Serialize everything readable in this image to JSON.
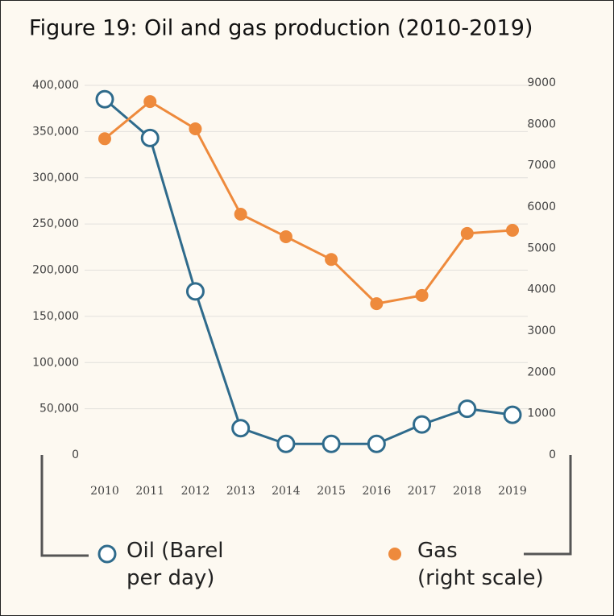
{
  "chart_data": {
    "type": "line",
    "title": "Figure 19: Oil and gas production (2010-2019)",
    "categories": [
      "2010",
      "2011",
      "2012",
      "2013",
      "2014",
      "2015",
      "2016",
      "2017",
      "2018",
      "2019"
    ],
    "series": [
      {
        "name": "Oil (Barel\nper day)",
        "color": "#2f6b8c",
        "marker": "open-circle",
        "values": [
          385000,
          343000,
          177000,
          29000,
          12000,
          12000,
          12000,
          33000,
          50000,
          43500
        ]
      },
      {
        "name": "Gas\n(right scale)",
        "color": "#ee8a3c",
        "marker": "filled-circle",
        "axis": "y2",
        "values": [
          7650,
          8550,
          7890,
          5825,
          5280,
          4730,
          3660,
          3860,
          5360,
          5435
        ]
      }
    ],
    "ylim": [
      0,
      400000
    ],
    "yticks": [
      0,
      {
        "value": 50000,
        "label": "50,000"
      },
      {
        "value": 100000,
        "label": "100,000"
      },
      {
        "value": 150000,
        "label": "150,000"
      },
      {
        "value": 200000,
        "label": "200,000"
      },
      {
        "value": 250000,
        "label": "250,000"
      },
      {
        "value": 300000,
        "label": "300,000"
      },
      {
        "value": 350000,
        "label": "350,000"
      },
      {
        "value": 400000,
        "label": "400,000"
      }
    ],
    "y2lim": [
      0,
      9000
    ],
    "y2ticks": [
      0,
      1000,
      2000,
      3000,
      4000,
      5000,
      6000,
      7000,
      8000,
      9000
    ],
    "grid": true
  }
}
